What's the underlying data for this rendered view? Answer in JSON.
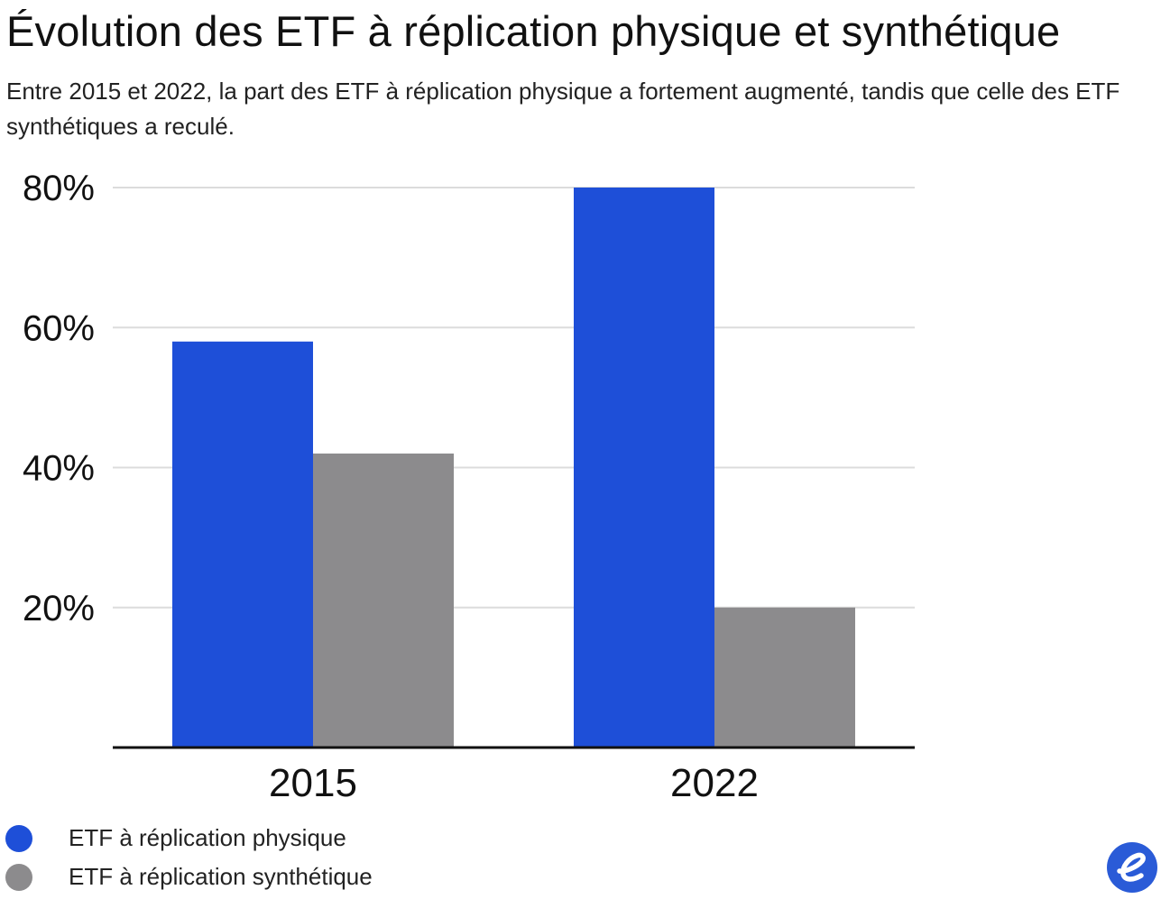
{
  "title": "Évolution des ETF à réplication physique et synthétique",
  "subtitle": "Entre 2015 et 2022, la part des ETF à réplication physique a fortement augmenté, tandis que celle des ETF synthétiques a reculé.",
  "colors": {
    "physique": "#1e4fd8",
    "synthetique": "#8c8b8d",
    "grid": "#dcdcdc",
    "axis": "#111111",
    "brand": "#2a5bd7"
  },
  "logo": {
    "icon": "brand-e-logo-icon"
  },
  "chart_data": {
    "type": "bar",
    "categories": [
      "2015",
      "2022"
    ],
    "series": [
      {
        "name": "ETF à réplication physique",
        "values": [
          58,
          80
        ],
        "color": "#1e4fd8"
      },
      {
        "name": "ETF à réplication synthétique",
        "values": [
          42,
          20
        ],
        "color": "#8c8b8d"
      }
    ],
    "y_ticks": [
      20,
      40,
      60,
      80
    ],
    "y_tick_labels": [
      "20%",
      "40%",
      "60%",
      "80%"
    ],
    "ylim": [
      0,
      80
    ],
    "grid": true,
    "legend_position": "bottom-left"
  }
}
